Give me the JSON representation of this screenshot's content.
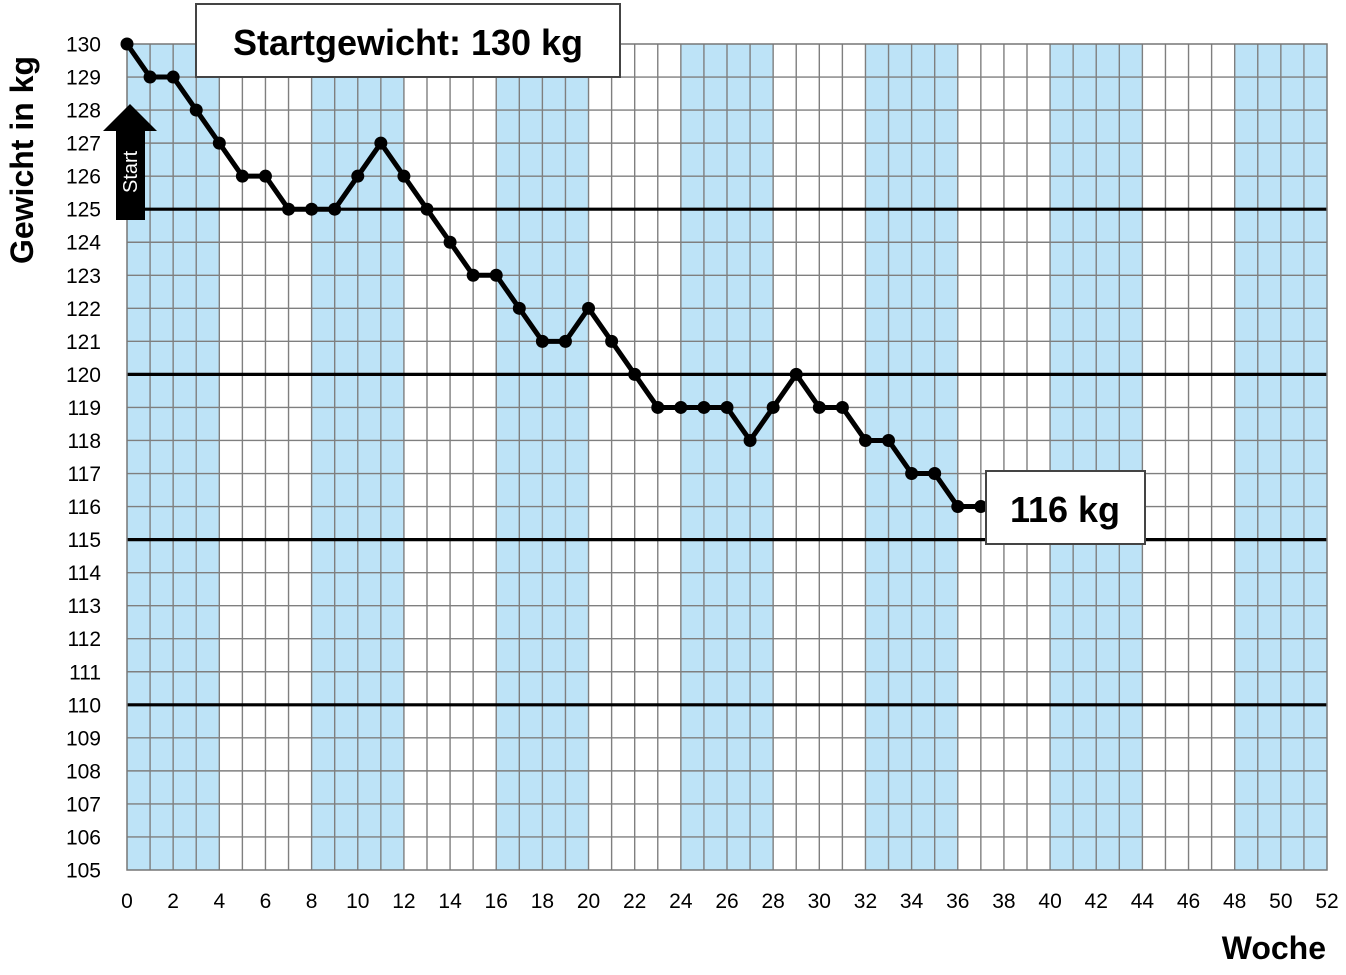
{
  "chart_data": {
    "type": "line",
    "xlabel": "Woche",
    "ylabel": "Gewicht in kg",
    "xlim": [
      0,
      52
    ],
    "ylim": [
      105,
      130
    ],
    "x_ticks": [
      "0",
      "2",
      "4",
      "6",
      "8",
      "10",
      "12",
      "14",
      "16",
      "18",
      "20",
      "22",
      "24",
      "26",
      "28",
      "30",
      "32",
      "34",
      "36",
      "38",
      "40",
      "42",
      "44",
      "46",
      "48",
      "50",
      "52"
    ],
    "y_ticks": [
      "105",
      "106",
      "107",
      "108",
      "109",
      "110",
      "111",
      "112",
      "113",
      "114",
      "115",
      "116",
      "117",
      "118",
      "119",
      "120",
      "121",
      "122",
      "123",
      "124",
      "125",
      "126",
      "127",
      "128",
      "129",
      "130"
    ],
    "bold_gridlines_y": [
      110,
      115,
      120,
      125
    ],
    "shaded_week_bands": [
      [
        0,
        4
      ],
      [
        8,
        12
      ],
      [
        16,
        20
      ],
      [
        24,
        28
      ],
      [
        32,
        36
      ],
      [
        40,
        44
      ],
      [
        48,
        52
      ]
    ],
    "band_color": "#bde3f7",
    "line_color": "#000000",
    "x": [
      0,
      1,
      2,
      3,
      4,
      5,
      6,
      7,
      8,
      9,
      10,
      11,
      12,
      13,
      14,
      15,
      16,
      17,
      18,
      19,
      20,
      21,
      22,
      23,
      24,
      25,
      26,
      27,
      28,
      29,
      30,
      31,
      32,
      33,
      34,
      35,
      36,
      37
    ],
    "values": [
      130,
      129,
      129,
      128,
      127,
      126,
      126,
      125,
      125,
      125,
      126,
      127,
      126,
      125,
      124,
      123,
      123,
      122,
      121,
      121,
      122,
      121,
      120,
      119,
      119,
      119,
      119,
      118,
      119,
      120,
      119,
      119,
      118,
      118,
      117,
      117,
      116,
      116
    ],
    "annotations": {
      "start_weight": "Startgewicht: 130 kg",
      "end_weight": "116 kg",
      "start_marker": "Start"
    }
  }
}
